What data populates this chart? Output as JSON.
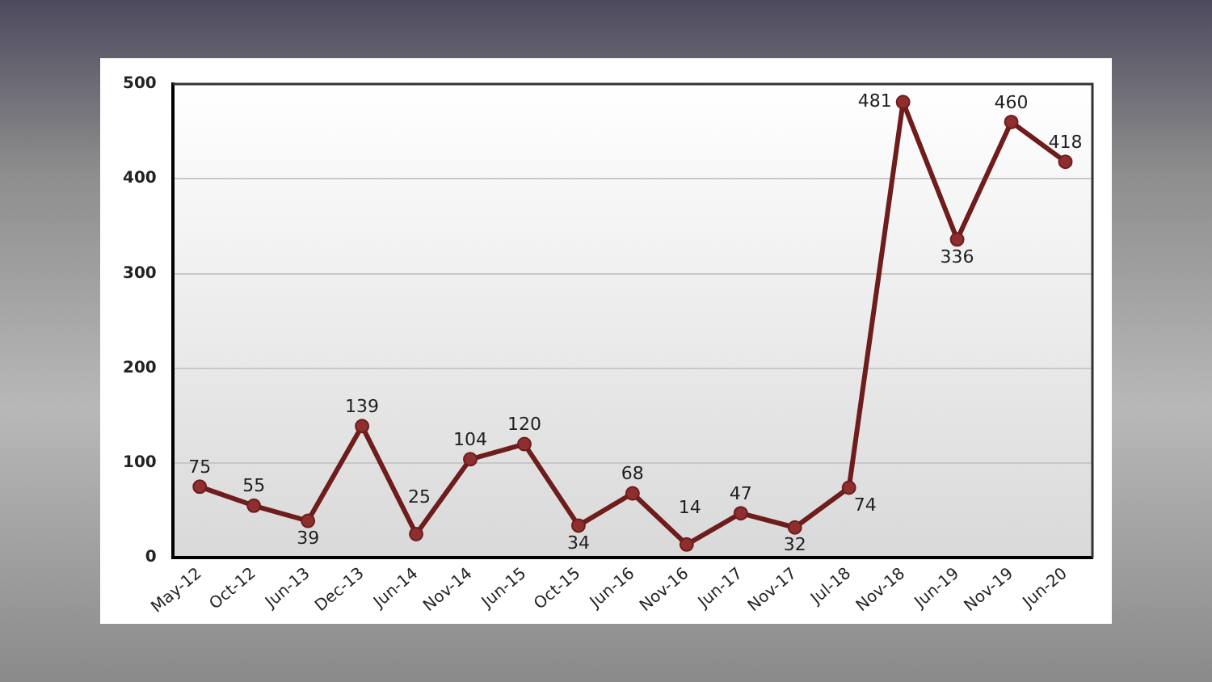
{
  "chart_data": {
    "type": "line",
    "categories": [
      "May-12",
      "Oct-12",
      "Jun-13",
      "Dec-13",
      "Jun-14",
      "Nov-14",
      "Jun-15",
      "Oct-15",
      "Jun-16",
      "Nov-16",
      "Jun-17",
      "Nov-17",
      "Jul-18",
      "Nov-18",
      "Jun-19",
      "Nov-19",
      "Jun-20"
    ],
    "series": [
      {
        "color": "#6e1c1c",
        "values": [
          75,
          55,
          39,
          139,
          25,
          104,
          120,
          34,
          68,
          14,
          47,
          32,
          74,
          481,
          336,
          460,
          418
        ]
      }
    ],
    "ylim": [
      0,
      500
    ],
    "yticks": [
      0,
      100,
      200,
      300,
      400,
      500
    ],
    "grid": "y",
    "marker": "circle",
    "data_labels": true,
    "legend": false
  }
}
